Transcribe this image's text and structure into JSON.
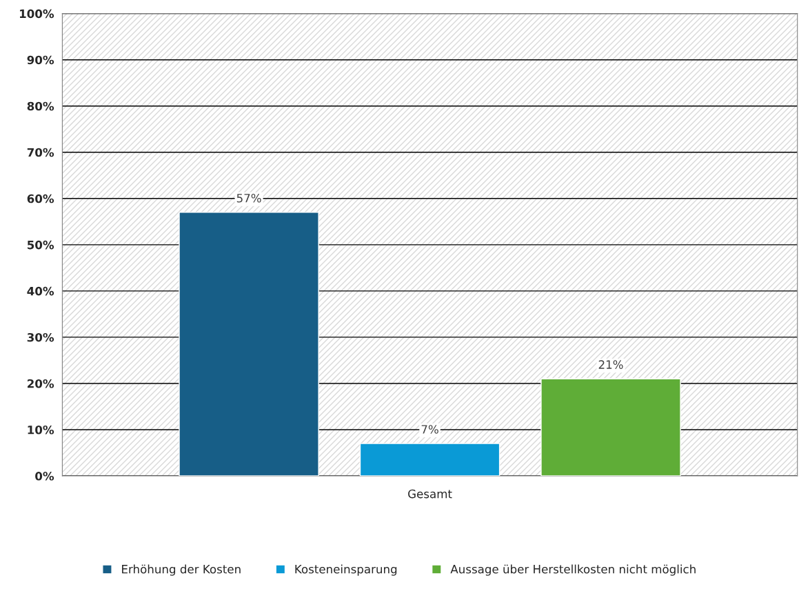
{
  "chart_data": {
    "type": "bar",
    "categories": [
      "Gesamt"
    ],
    "series": [
      {
        "name": "Erhöhung der Kosten",
        "color": "#175e87",
        "values": [
          57
        ],
        "value_labels": [
          "57%"
        ]
      },
      {
        "name": "Kosteneinsparung",
        "color": "#0a9ad6",
        "values": [
          7
        ],
        "value_labels": [
          "7%"
        ]
      },
      {
        "name": "Aussage über Herstellkosten nicht möglich",
        "color": "#5fad37",
        "values": [
          21
        ],
        "value_labels": [
          "21%"
        ]
      }
    ],
    "ylim": [
      0,
      100
    ],
    "yticks": [
      {
        "value": 0,
        "label": "0%"
      },
      {
        "value": 10,
        "label": "10%"
      },
      {
        "value": 20,
        "label": "20%"
      },
      {
        "value": 30,
        "label": "30%"
      },
      {
        "value": 40,
        "label": "40%"
      },
      {
        "value": 50,
        "label": "50%"
      },
      {
        "value": 60,
        "label": "60%"
      },
      {
        "value": 70,
        "label": "70%"
      },
      {
        "value": 80,
        "label": "80%"
      },
      {
        "value": 90,
        "label": "90%"
      },
      {
        "value": 100,
        "label": "100%"
      }
    ],
    "grid": "y",
    "legend": "bottom"
  }
}
